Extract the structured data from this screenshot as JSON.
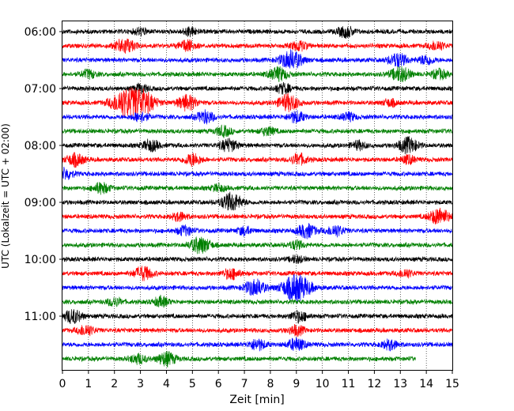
{
  "chart_data": {
    "type": "line",
    "plot_kind": "helicorder",
    "xlabel": "Zeit  [min]",
    "ylabel": "UTC (Lokalzeit = UTC + 02:00)",
    "xlim": [
      0,
      15
    ],
    "x_ticks": [
      0,
      1,
      2,
      3,
      4,
      5,
      6,
      7,
      8,
      9,
      10,
      11,
      12,
      13,
      14,
      15
    ],
    "y_tick_labels": [
      "06:00",
      "07:00",
      "08:00",
      "09:00",
      "10:00",
      "11:00"
    ],
    "grid": "vertical dotted lines at each minute",
    "trace_interval_min": 15,
    "colors": [
      "#000000",
      "#ff0000",
      "#0000ff",
      "#008000"
    ],
    "rows": [
      {
        "time": "06:00",
        "color": "#000000",
        "events": [
          [
            3.0,
            0.25
          ],
          [
            4.9,
            0.3
          ],
          [
            10.9,
            0.4
          ]
        ]
      },
      {
        "time": "06:15",
        "color": "#ff0000",
        "events": [
          [
            2.4,
            0.55
          ],
          [
            4.8,
            0.4
          ],
          [
            9.1,
            0.35
          ],
          [
            14.4,
            0.35
          ]
        ]
      },
      {
        "time": "06:30",
        "color": "#0000ff",
        "events": [
          [
            8.8,
            0.7
          ],
          [
            12.9,
            0.5
          ],
          [
            14.0,
            0.35
          ]
        ]
      },
      {
        "time": "06:45",
        "color": "#008000",
        "events": [
          [
            1.0,
            0.3
          ],
          [
            8.3,
            0.5
          ],
          [
            13.0,
            0.55
          ],
          [
            14.5,
            0.35
          ]
        ]
      },
      {
        "time": "07:00",
        "color": "#000000",
        "events": [
          [
            3.0,
            0.3
          ],
          [
            8.5,
            0.35
          ]
        ]
      },
      {
        "time": "07:15",
        "color": "#ff0000",
        "events": [
          [
            2.3,
            0.8
          ],
          [
            3.0,
            1.0
          ],
          [
            4.8,
            0.55
          ],
          [
            8.7,
            0.6
          ],
          [
            12.6,
            0.25
          ]
        ]
      },
      {
        "time": "07:30",
        "color": "#0000ff",
        "events": [
          [
            3.0,
            0.35
          ],
          [
            5.5,
            0.45
          ],
          [
            9.0,
            0.4
          ],
          [
            11.0,
            0.3
          ]
        ]
      },
      {
        "time": "07:45",
        "color": "#008000",
        "events": [
          [
            6.2,
            0.35
          ],
          [
            7.9,
            0.3
          ]
        ]
      },
      {
        "time": "08:00",
        "color": "#000000",
        "events": [
          [
            3.4,
            0.4
          ],
          [
            6.4,
            0.45
          ],
          [
            11.4,
            0.3
          ],
          [
            13.3,
            0.55
          ]
        ]
      },
      {
        "time": "08:15",
        "color": "#ff0000",
        "events": [
          [
            0.5,
            0.45
          ],
          [
            5.0,
            0.45
          ],
          [
            9.1,
            0.4
          ],
          [
            13.3,
            0.3
          ]
        ]
      },
      {
        "time": "08:30",
        "color": "#0000ff",
        "events": [
          [
            0.1,
            0.4
          ]
        ]
      },
      {
        "time": "08:45",
        "color": "#008000",
        "events": [
          [
            1.5,
            0.4
          ],
          [
            6.0,
            0.25
          ]
        ]
      },
      {
        "time": "09:00",
        "color": "#000000",
        "events": [
          [
            6.5,
            0.65
          ]
        ]
      },
      {
        "time": "09:15",
        "color": "#ff0000",
        "events": [
          [
            14.5,
            0.6
          ],
          [
            4.5,
            0.3
          ]
        ]
      },
      {
        "time": "09:30",
        "color": "#0000ff",
        "events": [
          [
            4.7,
            0.35
          ],
          [
            7.0,
            0.3
          ],
          [
            9.4,
            0.5
          ],
          [
            10.5,
            0.4
          ]
        ]
      },
      {
        "time": "09:45",
        "color": "#008000",
        "events": [
          [
            5.3,
            0.6
          ],
          [
            9.0,
            0.3
          ]
        ]
      },
      {
        "time": "10:00",
        "color": "#000000",
        "events": [
          [
            9.0,
            0.25
          ]
        ]
      },
      {
        "time": "10:15",
        "color": "#ff0000",
        "events": [
          [
            3.1,
            0.5
          ],
          [
            6.5,
            0.4
          ],
          [
            13.2,
            0.3
          ]
        ]
      },
      {
        "time": "10:30",
        "color": "#0000ff",
        "events": [
          [
            7.4,
            0.6
          ],
          [
            9.0,
            1.0
          ]
        ]
      },
      {
        "time": "10:45",
        "color": "#008000",
        "events": [
          [
            2.0,
            0.3
          ],
          [
            3.8,
            0.35
          ]
        ]
      },
      {
        "time": "11:00",
        "color": "#000000",
        "events": [
          [
            0.4,
            0.5
          ],
          [
            9.1,
            0.4
          ]
        ]
      },
      {
        "time": "11:15",
        "color": "#ff0000",
        "events": [
          [
            0.9,
            0.4
          ],
          [
            9.0,
            0.35
          ]
        ]
      },
      {
        "time": "11:30",
        "color": "#0000ff",
        "events": [
          [
            7.5,
            0.4
          ],
          [
            9.0,
            0.45
          ],
          [
            12.6,
            0.35
          ]
        ]
      },
      {
        "time": "11:45",
        "color": "#008000",
        "events": [
          [
            2.9,
            0.35
          ],
          [
            4.0,
            0.5
          ]
        ],
        "end_min": 13.6
      }
    ]
  }
}
